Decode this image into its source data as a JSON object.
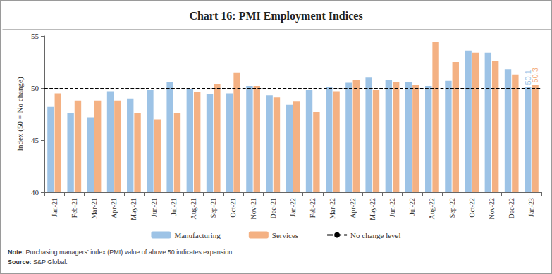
{
  "chart_data": {
    "type": "bar",
    "title": "Chart 16: PMI Employment Indices",
    "y_label": "Index (50 = No change)",
    "categories": [
      "Jan-21",
      "Feb-21",
      "Mar-21",
      "Apr-21",
      "May-21",
      "Jun-21",
      "Jul-21",
      "Aug-21",
      "Sep-21",
      "Oct-21",
      "Nov-21",
      "Dec-21",
      "Jan-22",
      "Feb-22",
      "Mar-22",
      "Apr-22",
      "May-22",
      "Jun-22",
      "Jul-22",
      "Aug-22",
      "Sep-22",
      "Oct-22",
      "Nov-22",
      "Dec-22",
      "Jan-23"
    ],
    "series": [
      {
        "name": "Manufacturing",
        "color": "#9dc3e6",
        "values": [
          48.2,
          47.6,
          47.2,
          49.7,
          49.0,
          49.8,
          50.6,
          49.9,
          49.4,
          49.5,
          50.2,
          49.3,
          48.4,
          49.8,
          50.1,
          50.5,
          51.0,
          50.8,
          50.6,
          50.2,
          50.7,
          53.6,
          53.4,
          51.8,
          50.1
        ],
        "value_labels": [
          null,
          null,
          null,
          null,
          null,
          null,
          null,
          null,
          null,
          null,
          null,
          null,
          null,
          null,
          null,
          null,
          null,
          null,
          null,
          null,
          null,
          null,
          null,
          null,
          "50.1"
        ]
      },
      {
        "name": "Services",
        "color": "#f4b183",
        "values": [
          49.5,
          48.8,
          48.8,
          48.8,
          47.6,
          47.0,
          47.6,
          49.6,
          50.4,
          51.5,
          50.2,
          49.1,
          48.7,
          47.7,
          49.7,
          50.8,
          49.8,
          50.6,
          50.3,
          54.4,
          52.5,
          53.4,
          52.6,
          51.3,
          50.3
        ],
        "value_labels": [
          null,
          null,
          null,
          null,
          null,
          null,
          null,
          null,
          null,
          null,
          null,
          null,
          null,
          null,
          null,
          null,
          null,
          null,
          null,
          null,
          null,
          null,
          null,
          null,
          "50.3"
        ]
      }
    ],
    "reference_lines": [
      {
        "name": "No change level",
        "value": 50,
        "color": "#000000",
        "line_style": "dashed"
      }
    ],
    "ylim": [
      40,
      55
    ],
    "yticks": [
      40,
      45,
      50,
      55
    ],
    "grid": false,
    "legend": "bottom",
    "notes": [
      "Note: Purchasing managers' index (PMI) value of above 50 indicates expansion.",
      "Source: S&P Global."
    ]
  }
}
